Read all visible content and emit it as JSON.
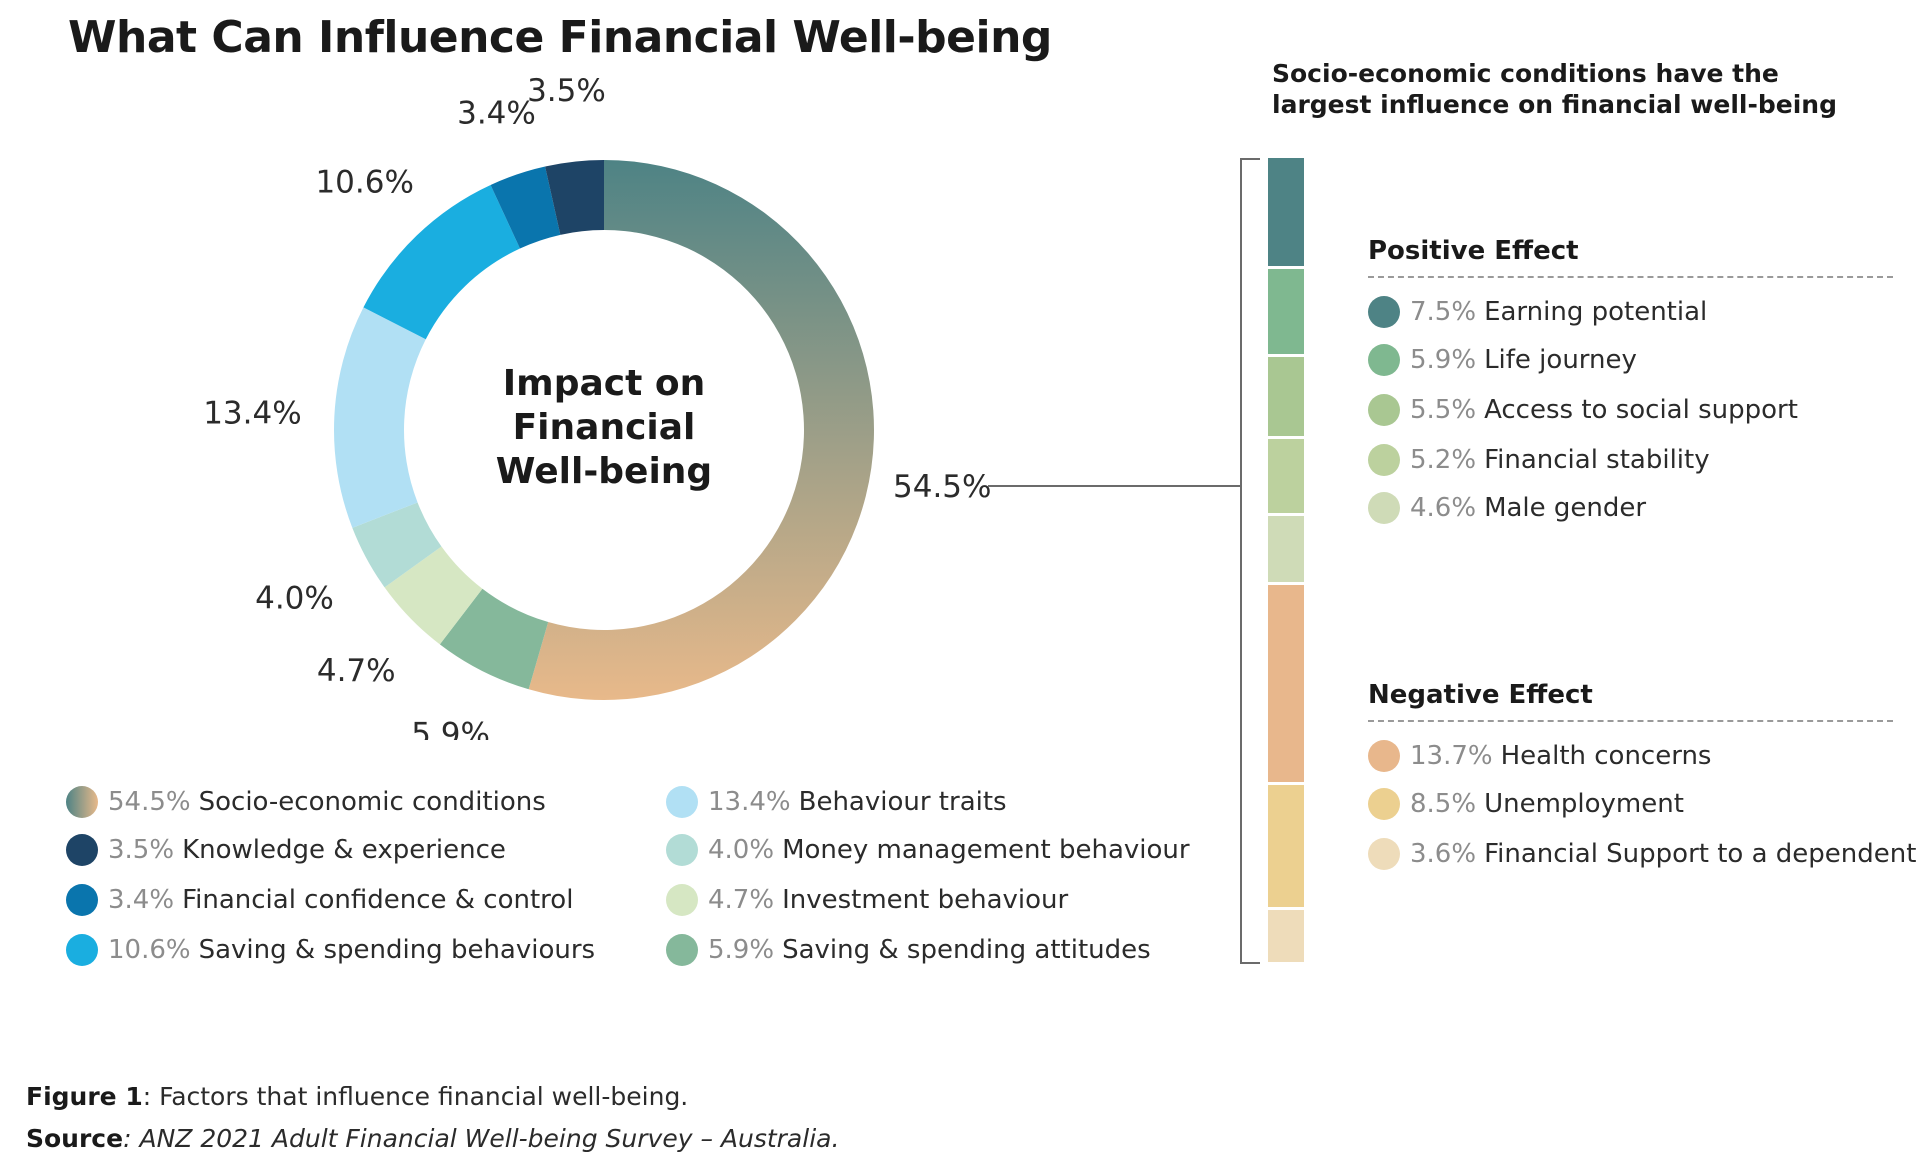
{
  "title": "What Can Influence Financial Well-being",
  "chart_data": [
    {
      "type": "pie",
      "variant": "donut",
      "center_label": [
        "Impact on",
        "Financial",
        "Well-being"
      ],
      "slices": [
        {
          "label": "Socio-economic conditions",
          "value": 54.5,
          "value_label": "54.5%",
          "color_start": "#4e8385",
          "color_end": "#e8b98a"
        },
        {
          "label": "Saving & spending attitudes",
          "value": 5.9,
          "value_label": "5.9%",
          "color": "#85b89b"
        },
        {
          "label": "Investment behaviour",
          "value": 4.7,
          "value_label": "4.7%",
          "color": "#d6e7c3"
        },
        {
          "label": "Money management behaviour",
          "value": 4.0,
          "value_label": "4.0%",
          "color": "#b2dcd6"
        },
        {
          "label": "Behaviour traits",
          "value": 13.4,
          "value_label": "13.4%",
          "color": "#b1e0f4"
        },
        {
          "label": "Saving & spending behaviours",
          "value": 10.6,
          "value_label": "10.6%",
          "color": "#1aaee0"
        },
        {
          "label": "Financial confidence & control",
          "value": 3.4,
          "value_label": "3.4%",
          "color": "#0a75ad"
        },
        {
          "label": "Knowledge & experience",
          "value": 3.5,
          "value_label": "3.5%",
          "color": "#1e4466"
        }
      ]
    },
    {
      "type": "bar",
      "variant": "stacked",
      "heading": "Socio-economic conditions have the largest influence on financial well-being",
      "groups": [
        {
          "name": "Positive Effect",
          "items": [
            {
              "label": "Earning potential",
              "value": 7.5,
              "value_label": "7.5%",
              "color": "#4e8385"
            },
            {
              "label": "Life journey",
              "value": 5.9,
              "value_label": "5.9%",
              "color": "#7fb890"
            },
            {
              "label": "Access to social support",
              "value": 5.5,
              "value_label": "5.5%",
              "color": "#a9c792"
            },
            {
              "label": "Financial stability",
              "value": 5.2,
              "value_label": "5.2%",
              "color": "#bcd19e"
            },
            {
              "label": "Male gender",
              "value": 4.6,
              "value_label": "4.6%",
              "color": "#cfdbb7"
            }
          ]
        },
        {
          "name": "Negative Effect",
          "items": [
            {
              "label": "Health concerns",
              "value": 13.7,
              "value_label": "13.7%",
              "color": "#e8b78c"
            },
            {
              "label": "Unemployment",
              "value": 8.5,
              "value_label": "8.5%",
              "color": "#ecd090"
            },
            {
              "label": "Financial Support to a dependent",
              "value": 3.6,
              "value_label": "3.6%",
              "color": "#eedcba"
            }
          ]
        }
      ]
    }
  ],
  "legend": [
    {
      "value_label": "54.5%",
      "label": "Socio-economic conditions",
      "gradient": true
    },
    {
      "value_label": "3.5%",
      "label": "Knowledge & experience",
      "color": "#1e4466"
    },
    {
      "value_label": "3.4%",
      "label": "Financial confidence & control",
      "color": "#0a75ad"
    },
    {
      "value_label": "10.6%",
      "label": "Saving & spending behaviours",
      "color": "#1aaee0"
    },
    {
      "value_label": "13.4%",
      "label": "Behaviour traits",
      "color": "#b1e0f4"
    },
    {
      "value_label": "4.0%",
      "label": "Money management behaviour",
      "color": "#b2dcd6"
    },
    {
      "value_label": "4.7%",
      "label": "Investment behaviour",
      "color": "#d6e7c3"
    },
    {
      "value_label": "5.9%",
      "label": "Saving & spending attitudes",
      "color": "#85b89b"
    }
  ],
  "caption": {
    "figure_label": "Figure 1",
    "figure_text": ":  Factors that influence financial well-being.",
    "source_label": "Source",
    "source_text": ":  ANZ 2021 Adult Financial Well-being Survey – Australia."
  }
}
